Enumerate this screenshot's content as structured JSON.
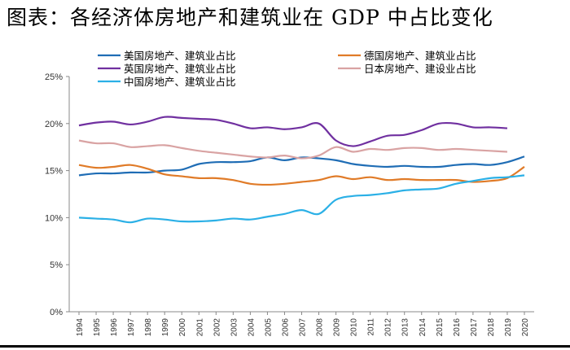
{
  "title": "图表：各经济体房地产和建筑业在 GDP 中占比变化",
  "chart_data": {
    "type": "line",
    "title": "图表：各经济体房地产和建筑业在 GDP 中占比变化",
    "x": [
      1994,
      1995,
      1996,
      1997,
      1998,
      1999,
      2000,
      2001,
      2002,
      2003,
      2004,
      2005,
      2006,
      2007,
      2008,
      2009,
      2010,
      2011,
      2012,
      2013,
      2014,
      2015,
      2016,
      2017,
      2018,
      2019,
      2020
    ],
    "ylim": [
      0,
      25
    ],
    "yticks": [
      "0%",
      "5%",
      "10%",
      "15%",
      "20%",
      "25%"
    ],
    "grid": false,
    "legend": "top",
    "series": [
      {
        "name": "美国房地产、建筑业占比",
        "color": "#1f6db5",
        "values": [
          14.5,
          14.7,
          14.7,
          14.8,
          14.8,
          15.0,
          15.1,
          15.7,
          15.9,
          15.9,
          16.0,
          16.4,
          16.1,
          16.4,
          16.3,
          16.1,
          15.7,
          15.5,
          15.4,
          15.5,
          15.4,
          15.4,
          15.6,
          15.7,
          15.6,
          15.9,
          16.5
        ]
      },
      {
        "name": "德国房地产、建筑业占比",
        "color": "#e07b28",
        "values": [
          15.6,
          15.3,
          15.4,
          15.6,
          15.2,
          14.6,
          14.4,
          14.2,
          14.2,
          14.0,
          13.6,
          13.5,
          13.6,
          13.8,
          14.0,
          14.4,
          14.1,
          14.3,
          14.0,
          14.1,
          14.0,
          14.0,
          14.0,
          13.8,
          13.9,
          14.2,
          15.4
        ]
      },
      {
        "name": "英国房地产、建筑业占比",
        "color": "#7030a0",
        "values": [
          19.8,
          20.1,
          20.2,
          19.9,
          20.2,
          20.7,
          20.6,
          20.5,
          20.4,
          20.0,
          19.5,
          19.6,
          19.4,
          19.6,
          20.0,
          18.2,
          17.6,
          18.1,
          18.7,
          18.8,
          19.3,
          20.0,
          20.0,
          19.6,
          19.6,
          19.5,
          null
        ]
      },
      {
        "name": "日本房地产、建设业占比",
        "color": "#d9a3a3",
        "values": [
          18.2,
          17.9,
          17.9,
          17.5,
          17.6,
          17.7,
          17.4,
          17.1,
          16.9,
          16.7,
          16.5,
          16.4,
          16.6,
          16.3,
          16.6,
          17.5,
          17.0,
          17.3,
          17.2,
          17.4,
          17.4,
          17.2,
          17.3,
          17.2,
          17.1,
          17.0,
          null
        ]
      },
      {
        "name": "中国房地产、建筑业占比",
        "color": "#2bb0e6",
        "values": [
          10.0,
          9.9,
          9.8,
          9.5,
          9.9,
          9.8,
          9.6,
          9.6,
          9.7,
          9.9,
          9.8,
          10.1,
          10.4,
          10.8,
          10.4,
          11.9,
          12.3,
          12.4,
          12.6,
          12.9,
          13.0,
          13.1,
          13.6,
          13.9,
          14.2,
          14.3,
          14.5
        ]
      }
    ]
  }
}
